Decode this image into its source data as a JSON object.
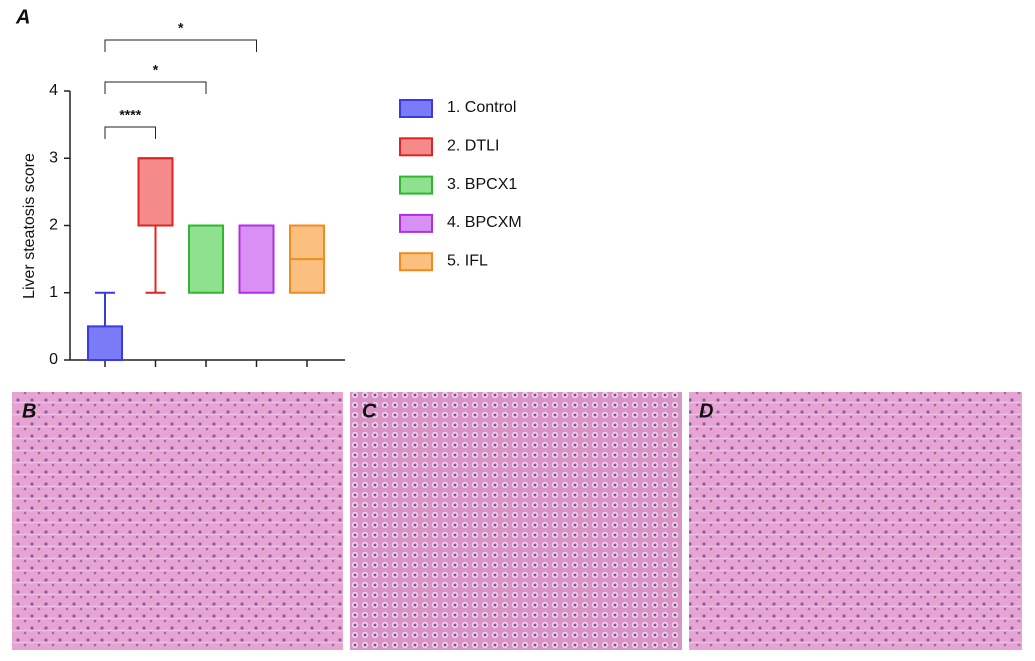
{
  "chart_data": {
    "type": "box",
    "panel_label": "A",
    "ylabel": "Liver steatosis score",
    "ylim": [
      0,
      4
    ],
    "yticks": [
      0,
      1,
      2,
      3,
      4
    ],
    "boxes": [
      {
        "name": "1. Control",
        "color": "#3a3ae0",
        "fill": "#7b7bf7",
        "min": 0,
        "q1": 0,
        "median": 0,
        "q3": 0.5,
        "max": 1
      },
      {
        "name": "2. DTLI",
        "color": "#e02424",
        "fill": "#f58a8a",
        "min": 1,
        "q1": 2,
        "median": 3,
        "q3": 3,
        "max": 3
      },
      {
        "name": "3. BPCX1",
        "color": "#2fb82f",
        "fill": "#8fe08f",
        "min": 1,
        "q1": 1,
        "median": 2,
        "q3": 2,
        "max": 2
      },
      {
        "name": "4. BPCXM",
        "color": "#b02fe0",
        "fill": "#d990f5",
        "min": 1,
        "q1": 1,
        "median": 2,
        "q3": 2,
        "max": 2
      },
      {
        "name": "5. IFL",
        "color": "#f08c1e",
        "fill": "#fbc080",
        "min": 1,
        "q1": 1,
        "median": 1.5,
        "q3": 2,
        "max": 2
      }
    ],
    "annotations": [
      "****",
      "*",
      "*"
    ]
  },
  "images": [
    "B",
    "C",
    "D"
  ]
}
